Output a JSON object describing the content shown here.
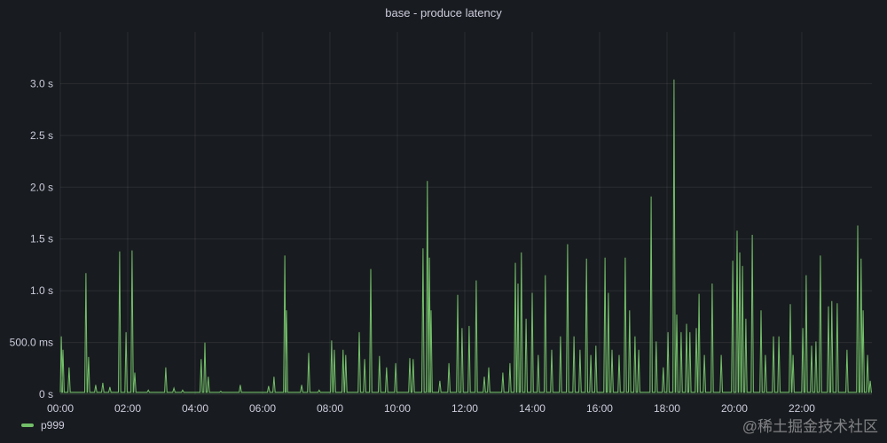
{
  "panel": {
    "title": "base - produce latency"
  },
  "watermark": "@稀土掘金技术社区",
  "colors": {
    "series": "#73bf69",
    "grid": "#2c2f35",
    "background": "#181b1f"
  },
  "chart_data": {
    "type": "line",
    "title": "base - produce latency",
    "xlabel": "",
    "ylabel": "",
    "x_unit": "hours of day",
    "y_unit": "seconds",
    "xlim": [
      0,
      24.08
    ],
    "ylim": [
      0,
      3.5
    ],
    "grid": true,
    "legend_placement": "bottom-left",
    "x_ticks": [
      {
        "v": 0,
        "label": "00:00"
      },
      {
        "v": 2,
        "label": "02:00"
      },
      {
        "v": 4,
        "label": "04:00"
      },
      {
        "v": 6,
        "label": "06:00"
      },
      {
        "v": 8,
        "label": "08:00"
      },
      {
        "v": 10,
        "label": "10:00"
      },
      {
        "v": 12,
        "label": "12:00"
      },
      {
        "v": 14,
        "label": "14:00"
      },
      {
        "v": 16,
        "label": "16:00"
      },
      {
        "v": 18,
        "label": "18:00"
      },
      {
        "v": 20,
        "label": "20:00"
      },
      {
        "v": 22,
        "label": "22:00"
      }
    ],
    "y_ticks": [
      {
        "v": 0,
        "label": "0 s"
      },
      {
        "v": 0.5,
        "label": "500.0 ms"
      },
      {
        "v": 1,
        "label": "1.0 s"
      },
      {
        "v": 1.5,
        "label": "1.5 s"
      },
      {
        "v": 2,
        "label": "2.0 s"
      },
      {
        "v": 2.5,
        "label": "2.5 s"
      },
      {
        "v": 3,
        "label": "3.0 s"
      }
    ],
    "series": [
      {
        "name": "p999",
        "baseline": 0.02,
        "peaks": [
          [
            0.03,
            0.56
          ],
          [
            0.08,
            0.43
          ],
          [
            0.26,
            0.26
          ],
          [
            0.76,
            1.17
          ],
          [
            0.84,
            0.36
          ],
          [
            1.05,
            0.09
          ],
          [
            1.26,
            0.11
          ],
          [
            1.47,
            0.07
          ],
          [
            1.76,
            1.38
          ],
          [
            1.95,
            0.6
          ],
          [
            2.13,
            1.39
          ],
          [
            2.21,
            0.21
          ],
          [
            2.61,
            0.04
          ],
          [
            3.13,
            0.26
          ],
          [
            3.37,
            0.06
          ],
          [
            3.63,
            0.04
          ],
          [
            4.18,
            0.34
          ],
          [
            4.29,
            0.5
          ],
          [
            4.39,
            0.17
          ],
          [
            4.76,
            0.03
          ],
          [
            5.34,
            0.09
          ],
          [
            6.18,
            0.08
          ],
          [
            6.34,
            0.17
          ],
          [
            6.66,
            1.34
          ],
          [
            6.71,
            0.81
          ],
          [
            7.16,
            0.09
          ],
          [
            7.37,
            0.4
          ],
          [
            7.68,
            0.04
          ],
          [
            8.05,
            0.52
          ],
          [
            8.13,
            0.43
          ],
          [
            8.39,
            0.43
          ],
          [
            8.47,
            0.38
          ],
          [
            8.87,
            0.6
          ],
          [
            9.03,
            0.34
          ],
          [
            9.21,
            1.21
          ],
          [
            9.47,
            0.37
          ],
          [
            9.68,
            0.26
          ],
          [
            9.95,
            0.3
          ],
          [
            10.37,
            0.35
          ],
          [
            10.47,
            0.34
          ],
          [
            10.76,
            1.41
          ],
          [
            10.89,
            2.06
          ],
          [
            10.95,
            1.32
          ],
          [
            11.0,
            0.81
          ],
          [
            11.26,
            0.13
          ],
          [
            11.53,
            0.3
          ],
          [
            11.79,
            0.96
          ],
          [
            11.92,
            0.64
          ],
          [
            12.13,
            0.66
          ],
          [
            12.34,
            1.1
          ],
          [
            12.58,
            0.17
          ],
          [
            12.71,
            0.26
          ],
          [
            13.13,
            0.21
          ],
          [
            13.34,
            0.3
          ],
          [
            13.5,
            1.27
          ],
          [
            13.58,
            1.07
          ],
          [
            13.68,
            1.37
          ],
          [
            13.82,
            0.73
          ],
          [
            14.0,
            0.98
          ],
          [
            14.18,
            0.38
          ],
          [
            14.39,
            1.15
          ],
          [
            14.58,
            0.43
          ],
          [
            14.84,
            0.56
          ],
          [
            15.05,
            1.45
          ],
          [
            15.24,
            0.56
          ],
          [
            15.42,
            0.43
          ],
          [
            15.61,
            1.31
          ],
          [
            15.74,
            0.38
          ],
          [
            15.89,
            0.47
          ],
          [
            16.16,
            1.32
          ],
          [
            16.26,
            0.98
          ],
          [
            16.37,
            0.43
          ],
          [
            16.58,
            0.38
          ],
          [
            16.76,
            1.32
          ],
          [
            16.89,
            0.81
          ],
          [
            17.05,
            0.56
          ],
          [
            17.16,
            0.43
          ],
          [
            17.53,
            1.91
          ],
          [
            17.68,
            0.51
          ],
          [
            17.89,
            0.26
          ],
          [
            18.03,
            0.6
          ],
          [
            18.21,
            3.04
          ],
          [
            18.29,
            0.77
          ],
          [
            18.42,
            0.6
          ],
          [
            18.58,
            0.68
          ],
          [
            18.68,
            0.6
          ],
          [
            18.87,
            0.64
          ],
          [
            18.95,
            0.97
          ],
          [
            19.11,
            0.38
          ],
          [
            19.34,
            1.07
          ],
          [
            19.61,
            0.38
          ],
          [
            19.95,
            1.29
          ],
          [
            20.08,
            1.58
          ],
          [
            20.16,
            1.37
          ],
          [
            20.24,
            1.24
          ],
          [
            20.34,
            0.73
          ],
          [
            20.53,
            1.54
          ],
          [
            20.79,
            0.81
          ],
          [
            20.92,
            0.38
          ],
          [
            21.16,
            0.56
          ],
          [
            21.32,
            0.56
          ],
          [
            21.66,
            0.87
          ],
          [
            21.74,
            0.38
          ],
          [
            22.03,
            0.64
          ],
          [
            22.13,
            1.15
          ],
          [
            22.29,
            0.47
          ],
          [
            22.42,
            0.51
          ],
          [
            22.55,
            1.34
          ],
          [
            22.79,
            0.85
          ],
          [
            22.89,
            0.9
          ],
          [
            23.05,
            0.88
          ],
          [
            23.34,
            0.43
          ],
          [
            23.66,
            1.63
          ],
          [
            23.76,
            1.31
          ],
          [
            23.82,
            0.81
          ],
          [
            23.95,
            0.38
          ],
          [
            24.03,
            0.13
          ]
        ]
      }
    ]
  },
  "legend": [
    {
      "label": "p999"
    }
  ]
}
